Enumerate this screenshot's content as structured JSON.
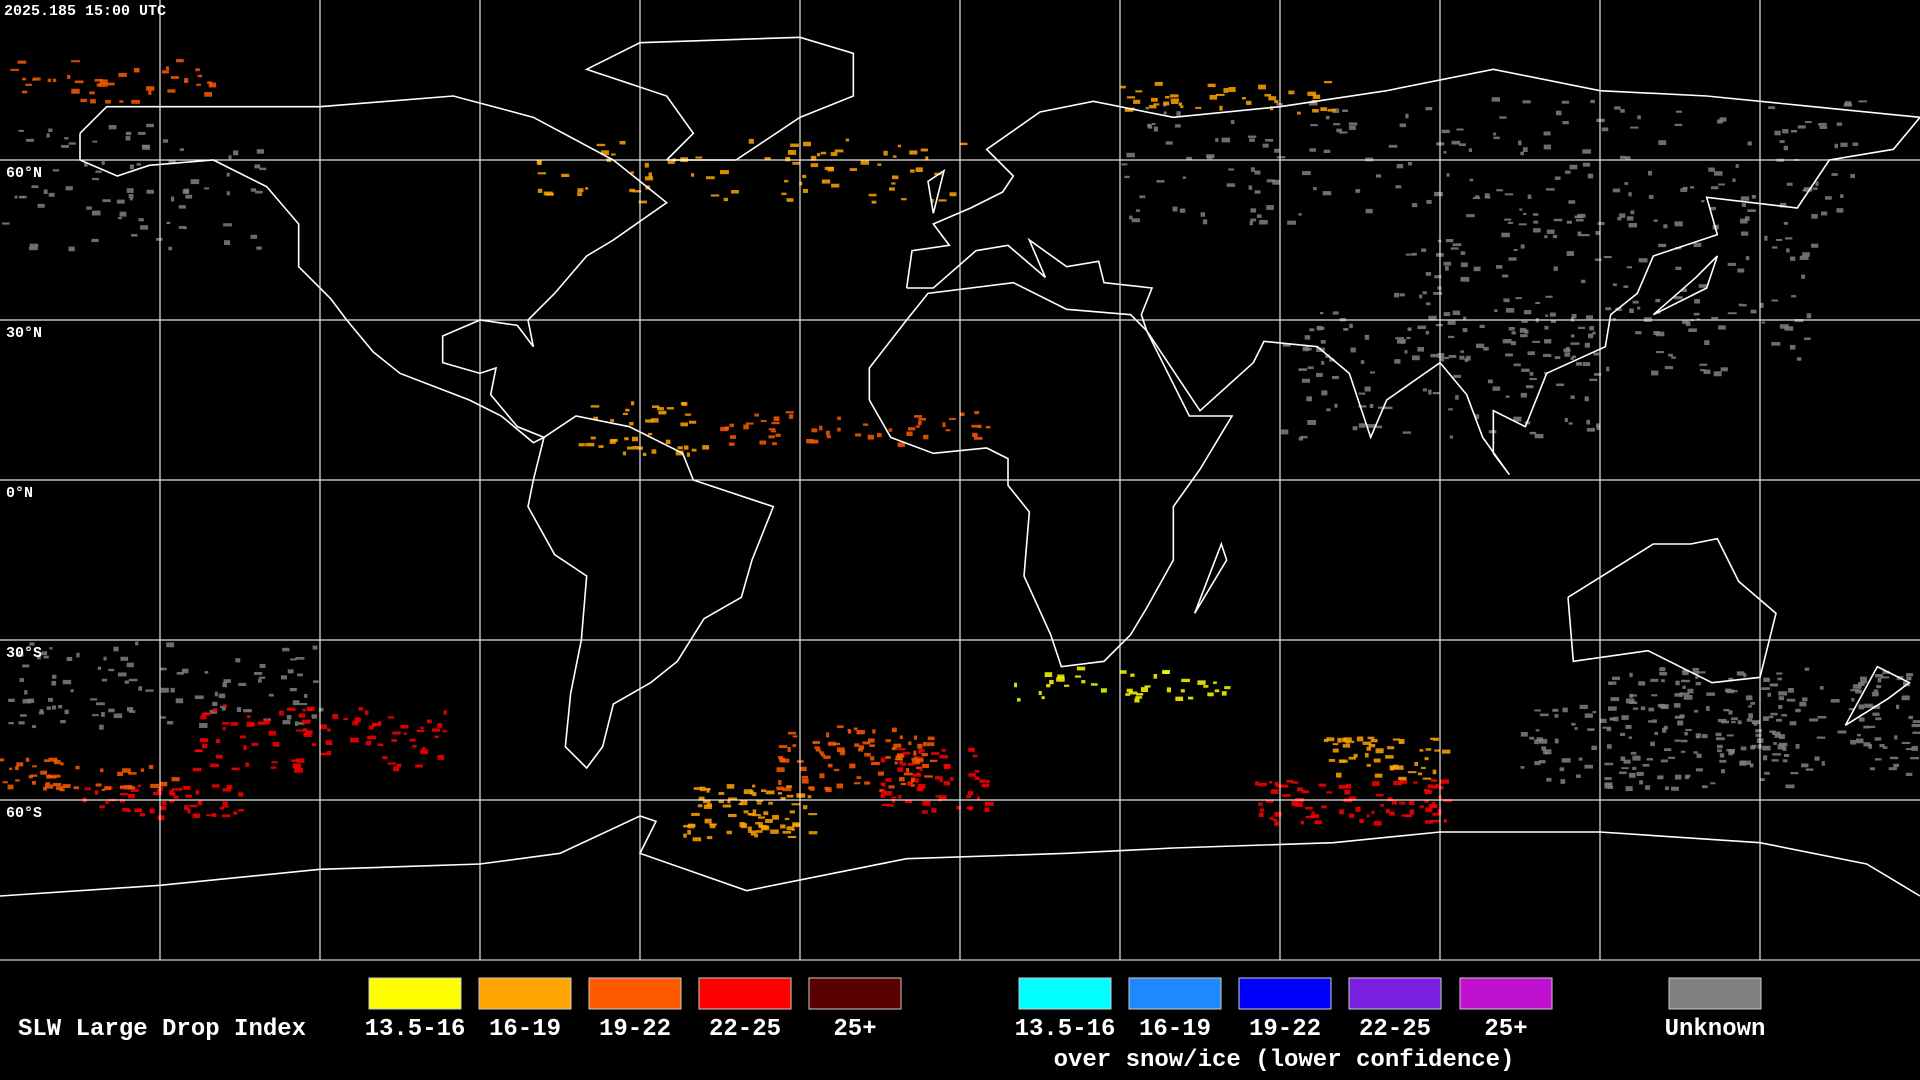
{
  "header": {
    "title": "2025.185 15:00 UTC"
  },
  "latitude_labels": [
    "60°N",
    "30°N",
    "0°N",
    "30°S",
    "60°S"
  ],
  "legend": {
    "title": "SLW Large Drop Index",
    "groups": [
      {
        "items": [
          {
            "label": "13.5-16",
            "color": "#ffff00"
          },
          {
            "label": "16-19",
            "color": "#ffa500"
          },
          {
            "label": "19-22",
            "color": "#ff5a00"
          },
          {
            "label": "22-25",
            "color": "#ff0000"
          },
          {
            "label": "25+",
            "color": "#5a0000"
          }
        ]
      },
      {
        "caption": "over snow/ice (lower confidence)",
        "items": [
          {
            "label": "13.5-16",
            "color": "#00ffff"
          },
          {
            "label": "16-19",
            "color": "#1e88ff"
          },
          {
            "label": "19-22",
            "color": "#0000ff"
          },
          {
            "label": "22-25",
            "color": "#7a1ee0"
          },
          {
            "label": "25+",
            "color": "#c010d0"
          }
        ]
      },
      {
        "items": [
          {
            "label": "Unknown",
            "color": "#808080"
          }
        ]
      }
    ]
  }
}
